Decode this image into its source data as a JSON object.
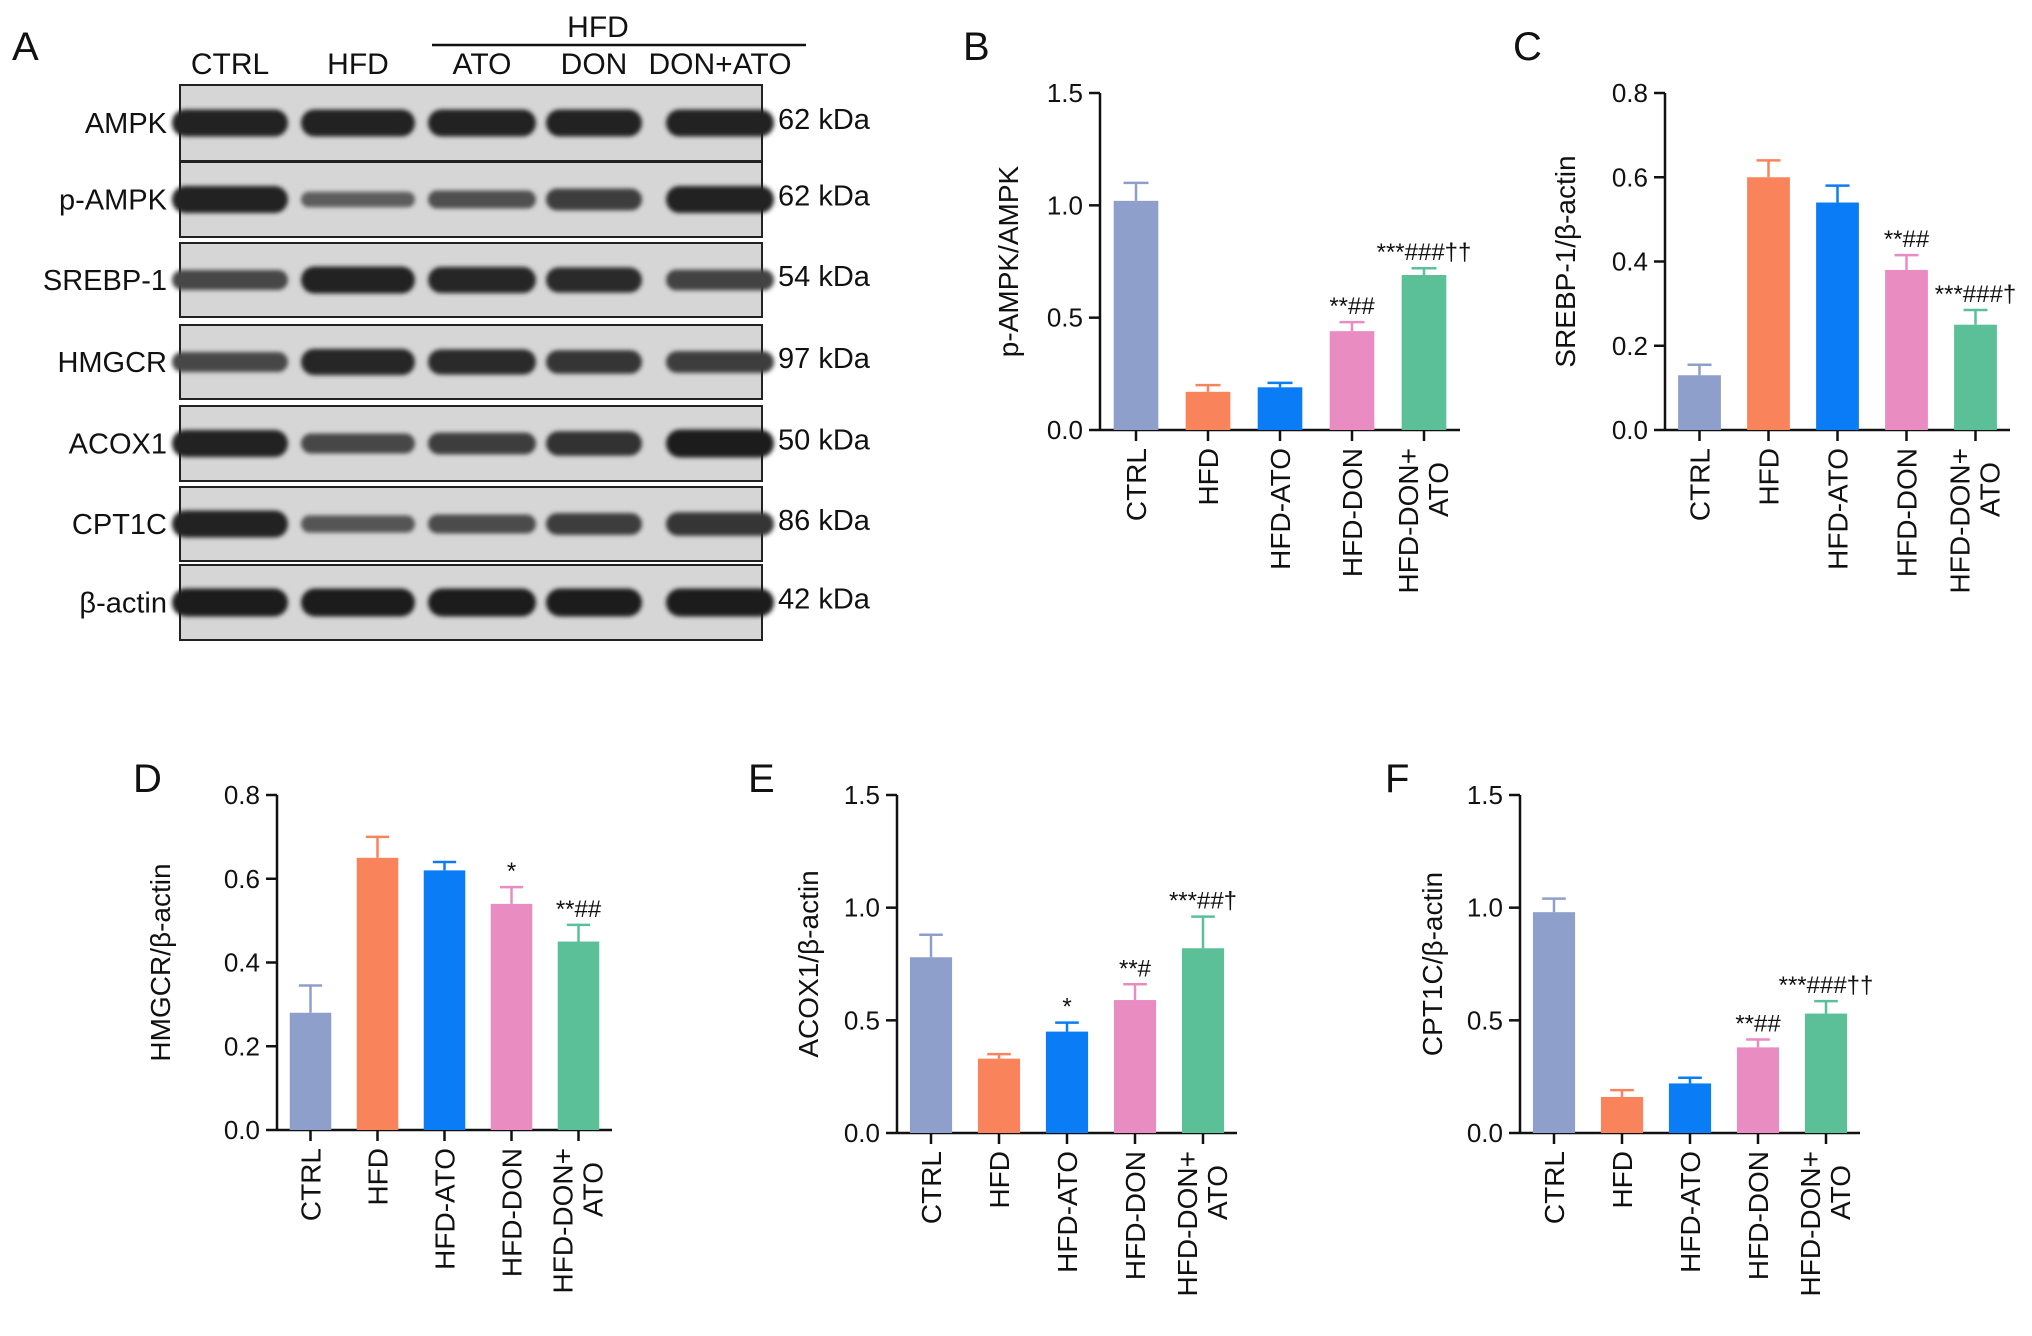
{
  "blot": {
    "panel_letter": "A",
    "group_header": "HFD",
    "lanes": [
      "CTRL",
      "HFD",
      "ATO",
      "DON",
      "DON+ATO"
    ],
    "rows": [
      {
        "label": "AMPK",
        "kda": "62 kDa",
        "intensity": [
          0.95,
          0.95,
          0.95,
          0.95,
          0.95
        ]
      },
      {
        "label": "p-AMPK",
        "kda": "62 kDa",
        "intensity": [
          0.95,
          0.3,
          0.45,
          0.65,
          0.95
        ]
      },
      {
        "label": "SREBP-1",
        "kda": "54 kDa",
        "intensity": [
          0.55,
          0.95,
          0.9,
          0.85,
          0.6
        ]
      },
      {
        "label": "HMGCR",
        "kda": "97 kDa",
        "intensity": [
          0.55,
          0.9,
          0.85,
          0.75,
          0.65
        ]
      },
      {
        "label": "ACOX1",
        "kda": "50 kDa",
        "intensity": [
          0.95,
          0.55,
          0.65,
          0.8,
          1.0
        ]
      },
      {
        "label": "CPT1C",
        "kda": "86 kDa",
        "intensity": [
          0.95,
          0.4,
          0.5,
          0.65,
          0.75
        ]
      },
      {
        "label": "β-actin",
        "kda": "42 kDa",
        "intensity": [
          1.0,
          1.0,
          1.0,
          1.0,
          1.0
        ]
      }
    ]
  },
  "colors": [
    "#8f9fcc",
    "#f9845b",
    "#0a7cf5",
    "#e88cc1",
    "#5bbf98"
  ],
  "chart_data": [
    {
      "panel": "B",
      "type": "bar",
      "ylabel": "p-AMPK/AMPK",
      "ylim": [
        0,
        1.5
      ],
      "ticks": [
        "0.0",
        "0.5",
        "1.0",
        "1.5"
      ],
      "categories": [
        "CTRL",
        "HFD",
        "HFD-ATO",
        "HFD-DON",
        "HFD-DON+ ATO"
      ],
      "values": [
        1.02,
        0.17,
        0.19,
        0.44,
        0.69
      ],
      "errors": [
        0.08,
        0.03,
        0.02,
        0.04,
        0.03
      ],
      "annotations": [
        "",
        "",
        "",
        "**##",
        "***###††"
      ]
    },
    {
      "panel": "C",
      "type": "bar",
      "ylabel": "SREBP-1/β-actin",
      "ylim": [
        0,
        0.8
      ],
      "ticks": [
        "0.0",
        "0.2",
        "0.4",
        "0.6",
        "0.8"
      ],
      "categories": [
        "CTRL",
        "HFD",
        "HFD-ATO",
        "HFD-DON",
        "HFD-DON+ ATO"
      ],
      "values": [
        0.13,
        0.6,
        0.54,
        0.38,
        0.25
      ],
      "errors": [
        0.025,
        0.04,
        0.04,
        0.035,
        0.035
      ],
      "annotations": [
        "",
        "",
        "",
        "**##",
        "***###†"
      ]
    },
    {
      "panel": "D",
      "type": "bar",
      "ylabel": "HMGCR/β-actin",
      "ylim": [
        0,
        0.8
      ],
      "ticks": [
        "0.0",
        "0.2",
        "0.4",
        "0.6",
        "0.8"
      ],
      "categories": [
        "CTRL",
        "HFD",
        "HFD-ATO",
        "HFD-DON",
        "HFD-DON+ ATO"
      ],
      "values": [
        0.28,
        0.65,
        0.62,
        0.54,
        0.45
      ],
      "errors": [
        0.065,
        0.05,
        0.02,
        0.04,
        0.04
      ],
      "annotations": [
        "",
        "",
        "",
        "*",
        "**##"
      ]
    },
    {
      "panel": "E",
      "type": "bar",
      "ylabel": "ACOX1/β-actin",
      "ylim": [
        0,
        1.5
      ],
      "ticks": [
        "0.0",
        "0.5",
        "1.0",
        "1.5"
      ],
      "categories": [
        "CTRL",
        "HFD",
        "HFD-ATO",
        "HFD-DON",
        "HFD-DON+ ATO"
      ],
      "values": [
        0.78,
        0.33,
        0.45,
        0.59,
        0.82
      ],
      "errors": [
        0.1,
        0.02,
        0.04,
        0.07,
        0.14
      ],
      "annotations": [
        "",
        "",
        "*",
        "**#",
        "***##†"
      ]
    },
    {
      "panel": "F",
      "type": "bar",
      "ylabel": "CPT1C/β-actin",
      "ylim": [
        0,
        1.5
      ],
      "ticks": [
        "0.0",
        "0.5",
        "1.0",
        "1.5"
      ],
      "categories": [
        "CTRL",
        "HFD",
        "HFD-ATO",
        "HFD-DON",
        "HFD-DON+ ATO"
      ],
      "values": [
        0.98,
        0.16,
        0.22,
        0.38,
        0.53
      ],
      "errors": [
        0.06,
        0.03,
        0.025,
        0.035,
        0.055
      ],
      "annotations": [
        "",
        "",
        "",
        "**##",
        "***###††"
      ]
    }
  ]
}
